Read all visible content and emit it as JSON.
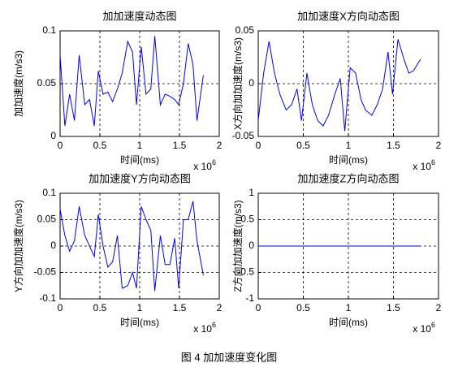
{
  "chart_data": [
    {
      "type": "line",
      "title": "加加速度动态图",
      "xlabel": "时间(ms)",
      "ylabel": "加加速度(m/s3)",
      "x_multiplier": {
        "base": "x 10",
        "exponent": "6"
      },
      "x": [
        0,
        0.06,
        0.12,
        0.18,
        0.24,
        0.31,
        0.37,
        0.43,
        0.48,
        0.54,
        0.6,
        0.66,
        0.72,
        0.78,
        0.85,
        0.91,
        0.96,
        1.02,
        1.08,
        1.14,
        1.19,
        1.26,
        1.32,
        1.38,
        1.44,
        1.49,
        1.55,
        1.61,
        1.67,
        1.72,
        1.8
      ],
      "values": [
        0.077,
        0.01,
        0.04,
        0.015,
        0.077,
        0.03,
        0.035,
        0.01,
        0.062,
        0.04,
        0.042,
        0.033,
        0.045,
        0.06,
        0.09,
        0.08,
        0.03,
        0.085,
        0.04,
        0.045,
        0.095,
        0.03,
        0.04,
        0.038,
        0.035,
        0.03,
        0.05,
        0.088,
        0.068,
        0.015,
        0.058
      ],
      "color": "#0000ff",
      "xlim": [
        0,
        2
      ],
      "xticks": [
        0,
        0.5,
        1,
        1.5,
        2
      ],
      "ylim": [
        0,
        0.1
      ],
      "yticks": [
        0,
        0.05,
        0.1
      ],
      "grid": true
    },
    {
      "type": "line",
      "title": "加加速度X方向动态图",
      "xlabel": "时间(ms)",
      "ylabel": "X方向加加速度(m/s3)",
      "x_multiplier": {
        "base": "x 10",
        "exponent": "6"
      },
      "x": [
        0,
        0.06,
        0.12,
        0.18,
        0.24,
        0.31,
        0.37,
        0.43,
        0.48,
        0.54,
        0.6,
        0.66,
        0.72,
        0.78,
        0.85,
        0.91,
        0.96,
        1.02,
        1.08,
        1.14,
        1.19,
        1.26,
        1.32,
        1.38,
        1.44,
        1.49,
        1.55,
        1.61,
        1.67,
        1.72,
        1.8
      ],
      "values": [
        -0.035,
        0.01,
        0.04,
        0.01,
        -0.01,
        -0.025,
        -0.02,
        -0.005,
        -0.035,
        0.01,
        -0.02,
        -0.035,
        -0.04,
        -0.03,
        -0.01,
        0.005,
        -0.045,
        0.015,
        0.01,
        -0.015,
        -0.025,
        -0.03,
        -0.02,
        -0.005,
        0.03,
        -0.01,
        0.042,
        0.025,
        0.01,
        0.012,
        0.023
      ],
      "color": "#0000ff",
      "xlim": [
        0,
        2
      ],
      "xticks": [
        0,
        0.5,
        1,
        1.5,
        2
      ],
      "ylim": [
        -0.05,
        0.05
      ],
      "yticks": [
        -0.05,
        0,
        0.05
      ],
      "grid": true
    },
    {
      "type": "line",
      "title": "加加速度Y方向动态图",
      "xlabel": "时间(ms)",
      "ylabel": "Y方向加加速度(m/s3)",
      "x_multiplier": {
        "base": "x 10",
        "exponent": "6"
      },
      "x": [
        0,
        0.06,
        0.12,
        0.18,
        0.24,
        0.31,
        0.37,
        0.43,
        0.48,
        0.54,
        0.6,
        0.66,
        0.72,
        0.78,
        0.85,
        0.91,
        0.96,
        1.02,
        1.08,
        1.14,
        1.19,
        1.26,
        1.32,
        1.38,
        1.44,
        1.49,
        1.55,
        1.61,
        1.67,
        1.72,
        1.8
      ],
      "values": [
        0.07,
        0.02,
        -0.01,
        0.01,
        0.075,
        0.02,
        0,
        -0.02,
        0.06,
        0,
        -0.04,
        -0.03,
        0.02,
        -0.08,
        -0.075,
        -0.05,
        -0.08,
        0.075,
        0.05,
        0.03,
        -0.085,
        0.02,
        -0.035,
        -0.035,
        0.015,
        -0.08,
        0.05,
        0.05,
        0.085,
        0.01,
        -0.055
      ],
      "color": "#0000ff",
      "xlim": [
        0,
        2
      ],
      "xticks": [
        0,
        0.5,
        1,
        1.5,
        2
      ],
      "ylim": [
        -0.1,
        0.1
      ],
      "yticks": [
        -0.1,
        -0.05,
        0,
        0.05,
        0.1
      ],
      "grid": true
    },
    {
      "type": "line",
      "title": "加加速度Z方向动态图",
      "xlabel": "时间(ms)",
      "ylabel": "Z方向加加速度(m/s3)",
      "x_multiplier": {
        "base": "x 10",
        "exponent": "6"
      },
      "x": [
        0,
        0.06,
        0.12,
        0.18,
        0.24,
        0.31,
        0.37,
        0.43,
        0.48,
        0.54,
        0.6,
        0.66,
        0.72,
        0.78,
        0.85,
        0.91,
        0.96,
        1.02,
        1.08,
        1.14,
        1.19,
        1.26,
        1.32,
        1.38,
        1.44,
        1.49,
        1.55,
        1.61,
        1.67,
        1.72,
        1.8
      ],
      "values": [
        0,
        0,
        0,
        0,
        0,
        0,
        0,
        0,
        0,
        0,
        0,
        0,
        0,
        0,
        0,
        0,
        0,
        0,
        0,
        0,
        0,
        0,
        0,
        0,
        0,
        0,
        0,
        0,
        0,
        0,
        0
      ],
      "color": "#0000ff",
      "xlim": [
        0,
        2
      ],
      "xticks": [
        0,
        0.5,
        1,
        1.5,
        2
      ],
      "ylim": [
        -1,
        1
      ],
      "yticks": [
        -1,
        -0.5,
        0,
        0.5,
        1
      ],
      "grid": true
    }
  ],
  "caption": "图 4  加加速度变化图"
}
